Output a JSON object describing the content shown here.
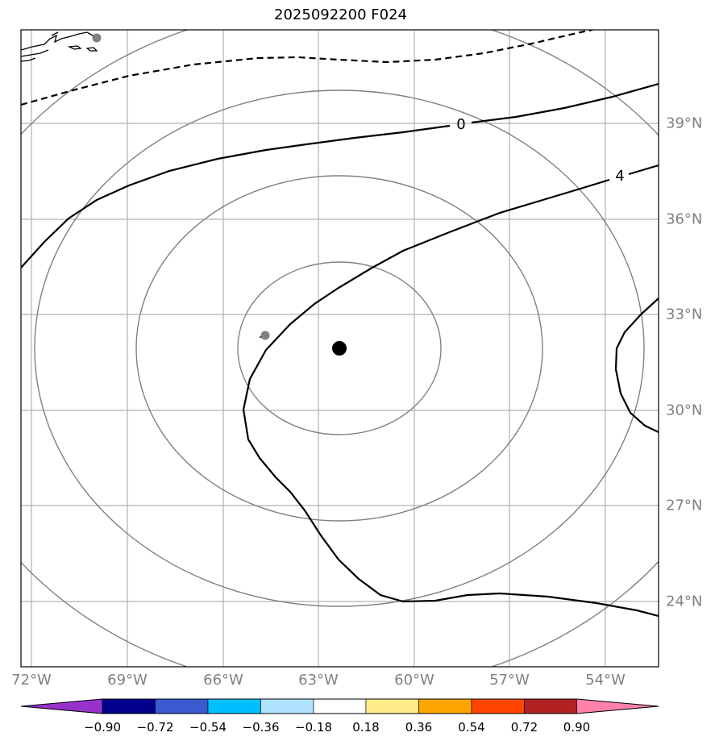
{
  "title": "2025092200 F024",
  "map": {
    "lon_labels": [
      "72°W",
      "69°W",
      "66°W",
      "63°W",
      "60°W",
      "57°W",
      "54°W"
    ],
    "lat_labels": [
      "39°N",
      "36°N",
      "33°N",
      "30°N",
      "27°N",
      "24°N"
    ],
    "contour_labels": [
      "0",
      "4"
    ],
    "center_marker": {
      "color": "#000000"
    },
    "secondary_markers_color": "#808080",
    "range_ring_color": "#808080",
    "gridline_color": "#b0b0b0"
  },
  "colorbar": {
    "tick_labels": [
      "−0.90",
      "−0.72",
      "−0.54",
      "−0.36",
      "−0.18",
      "0.18",
      "0.36",
      "0.54",
      "0.72",
      "0.90"
    ],
    "colors": [
      "#9932CC",
      "#00008B",
      "#3A5BCF",
      "#00BFFF",
      "#B0E2FF",
      "#FFFFFF",
      "#FFEC8B",
      "#FFA500",
      "#FF4500",
      "#B22222",
      "#FF82AB"
    ]
  }
}
